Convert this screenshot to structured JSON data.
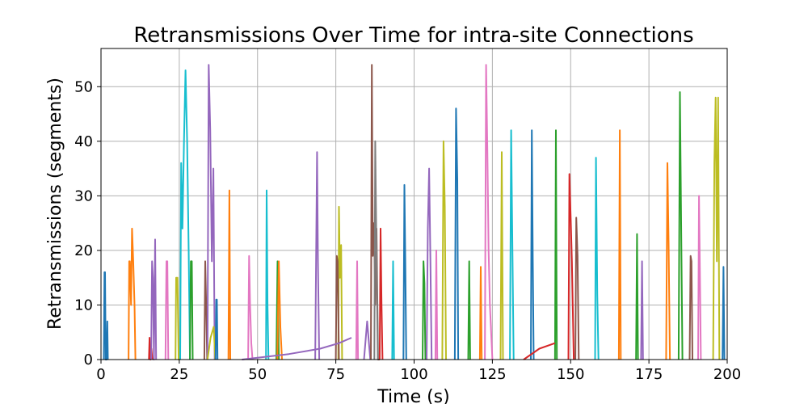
{
  "chart_data": {
    "type": "line",
    "title": "Retransmissions Over Time for intra-site Connections",
    "xlabel": "Time (s)",
    "ylabel": "Retransmissions (segments)",
    "xlim": [
      0,
      200
    ],
    "ylim": [
      0,
      57
    ],
    "xticks": [
      0,
      25,
      50,
      75,
      100,
      125,
      150,
      175,
      200
    ],
    "yticks": [
      0,
      10,
      20,
      30,
      40,
      50
    ],
    "grid": true,
    "legend": "none",
    "colors": [
      "#1f77b4",
      "#ff7f0e",
      "#2ca02c",
      "#d62728",
      "#9467bd",
      "#8c564b",
      "#e377c2",
      "#7f7f7f",
      "#bcbd22",
      "#17becf"
    ],
    "series": [
      {
        "color": "#1f77b4",
        "x": [
          0.9,
          1.1,
          1.3,
          1.5,
          1.8,
          2.0,
          2.2
        ],
        "y": [
          0,
          16,
          16,
          0,
          0,
          7,
          0
        ]
      },
      {
        "color": "#ff7f0e",
        "x": [
          8.8,
          9.0,
          9.2,
          9.6,
          9.9,
          10.3,
          10.7,
          11.0
        ],
        "y": [
          0,
          18,
          18,
          10,
          24,
          18,
          10,
          0
        ]
      },
      {
        "color": "#d62728",
        "x": [
          15.3,
          15.5,
          15.8,
          16.1,
          16.4
        ],
        "y": [
          0,
          4,
          0,
          2,
          0
        ]
      },
      {
        "color": "#9467bd",
        "x": [
          16.0,
          16.3,
          16.6,
          16.9,
          17.3,
          17.6
        ],
        "y": [
          0,
          18,
          15,
          0,
          22,
          0
        ]
      },
      {
        "color": "#e377c2",
        "x": [
          20.6,
          20.9,
          21.2,
          21.5
        ],
        "y": [
          0,
          18,
          18,
          0
        ]
      },
      {
        "color": "#bcbd22",
        "x": [
          23.8,
          24.0,
          24.4,
          24.8,
          25.1
        ],
        "y": [
          0,
          15,
          15,
          0,
          0
        ]
      },
      {
        "color": "#17becf",
        "x": [
          25.3,
          25.6,
          26.0,
          26.5,
          27.0,
          27.5,
          28.0,
          28.4
        ],
        "y": [
          0,
          36,
          24,
          40,
          53,
          40,
          20,
          0
        ]
      },
      {
        "color": "#2ca02c",
        "x": [
          28.4,
          28.7,
          29.0,
          29.3
        ],
        "y": [
          0,
          18,
          18,
          0
        ]
      },
      {
        "color": "#8c564b",
        "x": [
          33.0,
          33.3,
          33.6,
          33.9
        ],
        "y": [
          0,
          18,
          10,
          0
        ]
      },
      {
        "color": "#9467bd",
        "x": [
          34.0,
          34.4,
          34.9,
          35.4,
          35.9,
          36.3
        ],
        "y": [
          0,
          54,
          42,
          18,
          35,
          0
        ]
      },
      {
        "color": "#bcbd22",
        "x": [
          34.0,
          35.0,
          36.0,
          36.5
        ],
        "y": [
          0,
          4,
          6,
          0
        ]
      },
      {
        "color": "#1f77b4",
        "x": [
          36.6,
          36.8,
          37.0,
          37.2
        ],
        "y": [
          0,
          11,
          11,
          0
        ]
      },
      {
        "color": "#ff7f0e",
        "x": [
          40.7,
          41.0,
          41.3
        ],
        "y": [
          0,
          31,
          0
        ]
      },
      {
        "color": "#e377c2",
        "x": [
          47.0,
          47.3,
          47.6,
          48.0,
          48.4
        ],
        "y": [
          0,
          19,
          10,
          3,
          0
        ]
      },
      {
        "color": "#17becf",
        "x": [
          52.7,
          52.9,
          53.2,
          53.5
        ],
        "y": [
          0,
          31,
          10,
          0
        ]
      },
      {
        "color": "#2ca02c",
        "x": [
          56.0,
          56.4,
          56.8
        ],
        "y": [
          0,
          18,
          0
        ]
      },
      {
        "color": "#ff7f0e",
        "x": [
          56.3,
          56.8,
          57.3,
          57.8
        ],
        "y": [
          0,
          18,
          6,
          0
        ]
      },
      {
        "color": "#9467bd",
        "x": [
          68.4,
          68.7,
          69.0,
          69.3,
          69.7
        ],
        "y": [
          0,
          18,
          38,
          18,
          0
        ]
      },
      {
        "color": "#bcbd22",
        "x": [
          75.8,
          76.0,
          76.3,
          76.7,
          77.0
        ],
        "y": [
          0,
          28,
          15,
          21,
          0
        ]
      },
      {
        "color": "#8c564b",
        "x": [
          75.0,
          75.3,
          75.6,
          76.0
        ],
        "y": [
          0,
          19,
          18,
          0
        ]
      },
      {
        "color": "#e377c2",
        "x": [
          81.5,
          81.8,
          82.1
        ],
        "y": [
          0,
          18,
          0
        ]
      },
      {
        "color": "#9467bd",
        "x": [
          84.0,
          85.0,
          86.0
        ],
        "y": [
          0,
          7,
          0
        ]
      },
      {
        "color": "#8c564b",
        "x": [
          86.2,
          86.5,
          86.8,
          87.2,
          87.6,
          88.0,
          88.5,
          89.0
        ],
        "y": [
          0,
          54,
          19,
          25,
          10,
          24,
          0,
          0
        ]
      },
      {
        "color": "#7f7f7f",
        "x": [
          87.3,
          87.6,
          88.0,
          88.4
        ],
        "y": [
          0,
          40,
          19,
          0
        ]
      },
      {
        "color": "#d62728",
        "x": [
          89.0,
          89.3,
          89.6,
          89.9
        ],
        "y": [
          0,
          24,
          10,
          0
        ]
      },
      {
        "color": "#17becf",
        "x": [
          93.0,
          93.3,
          93.6
        ],
        "y": [
          0,
          18,
          0
        ]
      },
      {
        "color": "#1f77b4",
        "x": [
          96.6,
          96.9,
          97.2,
          97.5
        ],
        "y": [
          0,
          32,
          18,
          0
        ]
      },
      {
        "color": "#2ca02c",
        "x": [
          102.7,
          103.0,
          103.3,
          103.6
        ],
        "y": [
          0,
          18,
          14,
          0
        ]
      },
      {
        "color": "#9467bd",
        "x": [
          104.0,
          104.4,
          104.8,
          105.2,
          105.6
        ],
        "y": [
          0,
          24,
          35,
          18,
          0
        ]
      },
      {
        "color": "#e377c2",
        "x": [
          106.8,
          107.1,
          107.4
        ],
        "y": [
          0,
          20,
          0
        ]
      },
      {
        "color": "#bcbd22",
        "x": [
          109.0,
          109.4,
          109.8,
          110.2
        ],
        "y": [
          0,
          40,
          28,
          0
        ]
      },
      {
        "color": "#1f77b4",
        "x": [
          113.0,
          113.4,
          113.8,
          114.1
        ],
        "y": [
          0,
          46,
          33,
          0
        ]
      },
      {
        "color": "#2ca02c",
        "x": [
          117.3,
          117.6,
          117.9
        ],
        "y": [
          0,
          18,
          0
        ]
      },
      {
        "color": "#ff7f0e",
        "x": [
          121.0,
          121.3,
          121.6
        ],
        "y": [
          0,
          17,
          0
        ]
      },
      {
        "color": "#e377c2",
        "x": [
          122.6,
          123.0,
          123.4,
          123.8,
          124.2,
          125.0
        ],
        "y": [
          0,
          54,
          38,
          20,
          10,
          0
        ]
      },
      {
        "color": "#bcbd22",
        "x": [
          127.6,
          128.0,
          128.4
        ],
        "y": [
          0,
          38,
          0
        ]
      },
      {
        "color": "#17becf",
        "x": [
          130.6,
          131.0,
          131.4,
          131.8
        ],
        "y": [
          0,
          42,
          20,
          0
        ]
      },
      {
        "color": "#1f77b4",
        "x": [
          137.3,
          137.6,
          137.9,
          138.2
        ],
        "y": [
          0,
          42,
          18,
          0
        ]
      },
      {
        "color": "#2ca02c",
        "x": [
          145.0,
          145.3,
          145.6
        ],
        "y": [
          0,
          42,
          0
        ]
      },
      {
        "color": "#d62728",
        "x": [
          149.3,
          149.6,
          150.0,
          150.4,
          151.0
        ],
        "y": [
          0,
          34,
          26,
          18,
          0
        ]
      },
      {
        "color": "#8c564b",
        "x": [
          151.5,
          151.8,
          152.2,
          152.6
        ],
        "y": [
          0,
          26,
          19,
          0
        ]
      },
      {
        "color": "#17becf",
        "x": [
          157.8,
          158.1,
          158.5,
          158.9
        ],
        "y": [
          0,
          37,
          12,
          0
        ]
      },
      {
        "color": "#ff7f0e",
        "x": [
          165.4,
          165.7,
          166.0
        ],
        "y": [
          0,
          42,
          0
        ]
      },
      {
        "color": "#2ca02c",
        "x": [
          170.9,
          171.2,
          171.5
        ],
        "y": [
          0,
          23,
          0
        ]
      },
      {
        "color": "#9467bd",
        "x": [
          172.5,
          172.8,
          173.1
        ],
        "y": [
          0,
          18,
          0
        ]
      },
      {
        "color": "#ff7f0e",
        "x": [
          180.5,
          180.9,
          181.3,
          181.7
        ],
        "y": [
          0,
          36,
          21,
          0
        ]
      },
      {
        "color": "#2ca02c",
        "x": [
          184.5,
          184.9,
          185.3,
          185.7
        ],
        "y": [
          0,
          49,
          25,
          0
        ]
      },
      {
        "color": "#8c564b",
        "x": [
          188.0,
          188.3,
          188.6,
          188.9
        ],
        "y": [
          0,
          19,
          18,
          0
        ]
      },
      {
        "color": "#e377c2",
        "x": [
          190.7,
          191.0,
          191.3,
          191.6
        ],
        "y": [
          0,
          30,
          15,
          0
        ]
      },
      {
        "color": "#bcbd22",
        "x": [
          195.5,
          195.9,
          196.3,
          196.7,
          197.1,
          197.5
        ],
        "y": [
          0,
          36,
          48,
          18,
          48,
          0
        ]
      },
      {
        "color": "#1f77b4",
        "x": [
          198.5,
          198.8,
          199.1
        ],
        "y": [
          0,
          17,
          0
        ]
      },
      {
        "color": "#9467bd",
        "x": [
          45.0,
          60.0,
          70.0,
          76.0,
          80.0
        ],
        "y": [
          0,
          1,
          2,
          3,
          4
        ]
      },
      {
        "color": "#d62728",
        "x": [
          135.0,
          140.0,
          145.0
        ],
        "y": [
          0,
          2,
          3
        ]
      }
    ]
  }
}
